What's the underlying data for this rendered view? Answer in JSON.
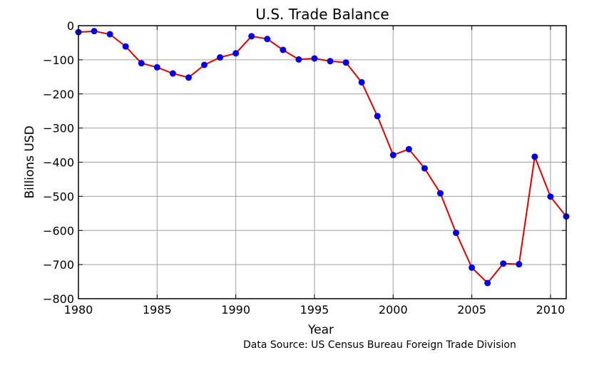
{
  "chart_data": {
    "type": "line",
    "title": "U.S. Trade Balance",
    "xlabel": "Year",
    "ylabel": "Billions USD",
    "source_note": "Data Source: US Census Bureau Foreign Trade Division",
    "xlim": [
      1980,
      2011
    ],
    "ylim": [
      -800,
      0
    ],
    "xticks": [
      1980,
      1985,
      1990,
      1995,
      2000,
      2005,
      2010
    ],
    "yticks": [
      0,
      -100,
      -200,
      -300,
      -400,
      -500,
      -600,
      -700,
      -800
    ],
    "ytick_labels": [
      "0",
      "−100",
      "−200",
      "−300",
      "−400",
      "−500",
      "−600",
      "−700",
      "−800"
    ],
    "grid": true,
    "line_color": "#e00000",
    "marker_color": "#0000e8",
    "series": [
      {
        "x": [
          1980,
          1981,
          1982,
          1983,
          1984,
          1985,
          1986,
          1987,
          1988,
          1989,
          1990,
          1991,
          1992,
          1993,
          1994,
          1995,
          1996,
          1997,
          1998,
          1999,
          2000,
          2001,
          2002,
          2003,
          2004,
          2005,
          2006,
          2007,
          2008,
          2009,
          2010,
          2011
        ],
        "y": [
          -19,
          -16,
          -25,
          -61,
          -110,
          -122,
          -140,
          -152,
          -115,
          -93,
          -81,
          -31,
          -39,
          -71,
          -99,
          -96,
          -104,
          -108,
          -166,
          -265,
          -379,
          -362,
          -418,
          -491,
          -607,
          -709,
          -754,
          -697,
          -699,
          -384,
          -501,
          -559
        ]
      }
    ]
  }
}
